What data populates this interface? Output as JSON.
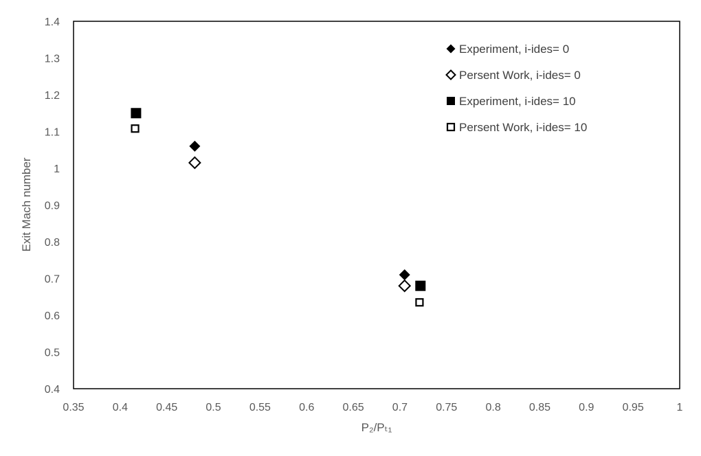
{
  "chart_data": {
    "type": "scatter",
    "title": "",
    "xlabel": "P₂/Pₜ₁",
    "ylabel": "Exit Mach number",
    "xlim": [
      0.35,
      1.0
    ],
    "ylim": [
      0.4,
      1.4
    ],
    "xticks": [
      "0.35",
      "0.4",
      "0.45",
      "0.5",
      "0.55",
      "0.6",
      "0.65",
      "0.7",
      "0.75",
      "0.8",
      "0.85",
      "0.9",
      "0.95",
      "1"
    ],
    "yticks": [
      "0.4",
      "0.5",
      "0.6",
      "0.7",
      "0.8",
      "0.9",
      "1",
      "1.1",
      "1.2",
      "1.3",
      "1.4"
    ],
    "grid": false,
    "legend_position": "top-right",
    "series": [
      {
        "name": "Experiment, i-ides= 0",
        "marker": "diamond-filled",
        "x": [
          0.48,
          0.705
        ],
        "y": [
          1.06,
          0.71
        ]
      },
      {
        "name": "Persent Work, i-ides= 0",
        "marker": "diamond-open",
        "x": [
          0.48,
          0.705
        ],
        "y": [
          1.015,
          0.68
        ]
      },
      {
        "name": "Experiment, i-ides= 10",
        "marker": "square-filled",
        "x": [
          0.417,
          0.722
        ],
        "y": [
          1.15,
          0.68
        ]
      },
      {
        "name": "Persent Work, i-ides= 10",
        "marker": "square-open",
        "x": [
          0.416,
          0.721
        ],
        "y": [
          1.108,
          0.635
        ]
      }
    ]
  },
  "colors": {
    "marker": "#000000",
    "axis_text": "#595959",
    "frame": "#000000"
  }
}
